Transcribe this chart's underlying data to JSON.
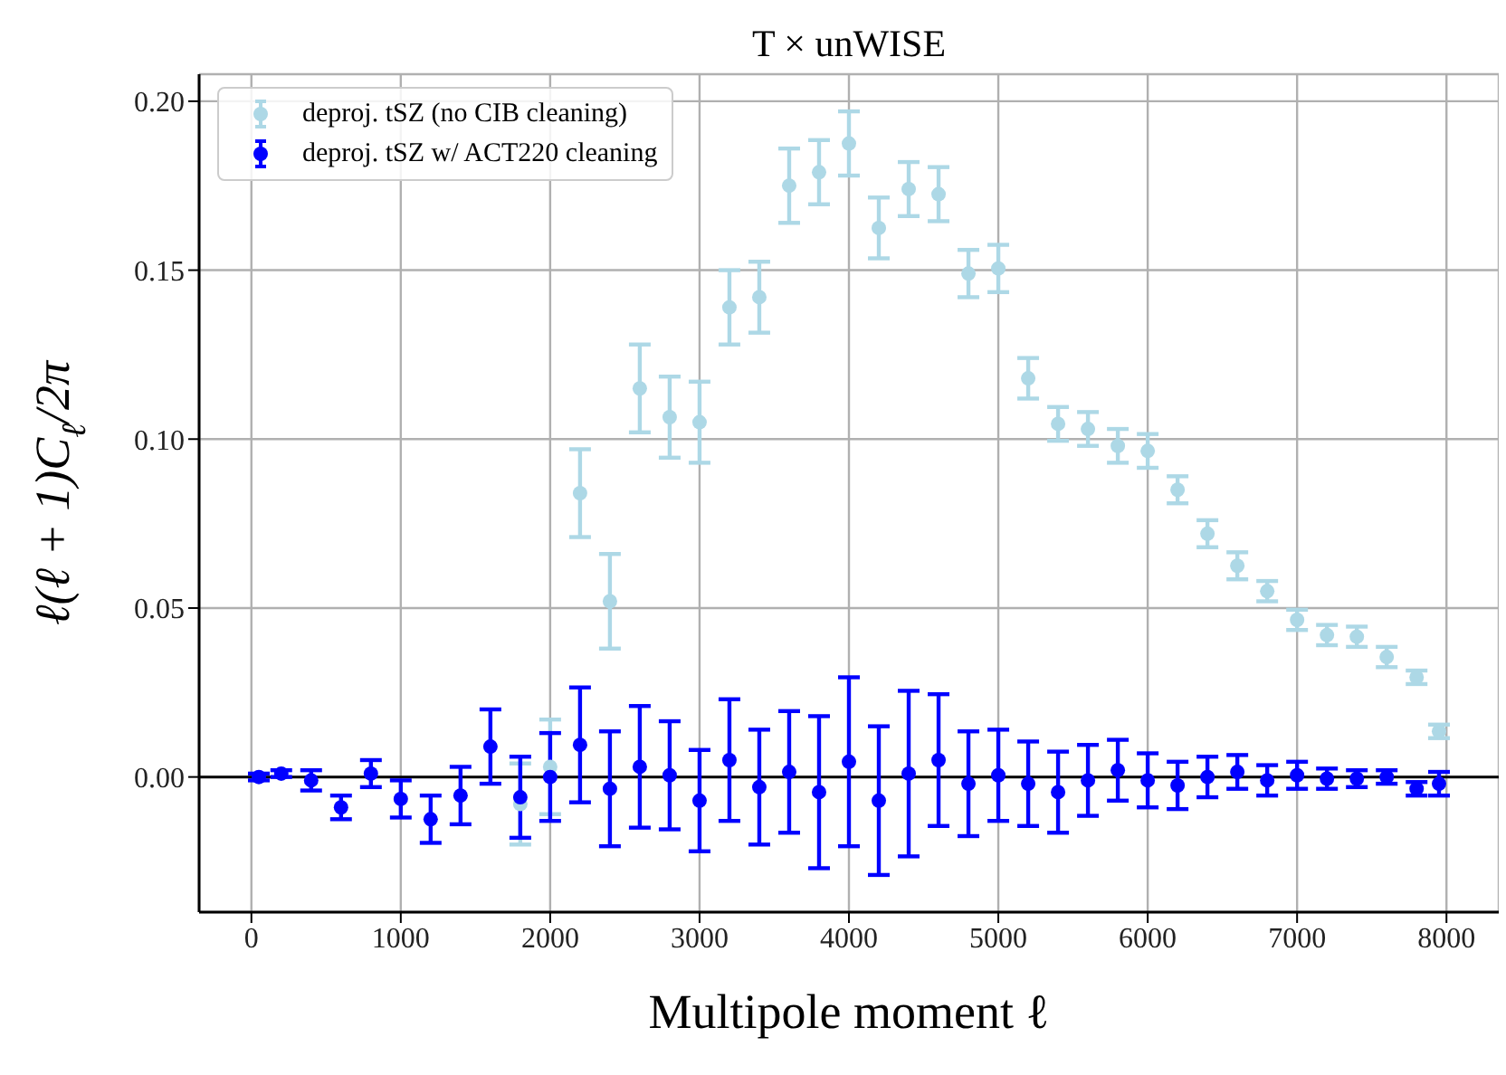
{
  "chart_data": {
    "type": "scatter",
    "title": "T × unWISE",
    "xlabel": "Multipole moment ℓ",
    "ylabel": "ℓ(ℓ + 1)C$_{ℓ}$/2π",
    "xlim": [
      -350,
      8350
    ],
    "xticks": [
      0,
      1000,
      2000,
      3000,
      4000,
      5000,
      6000,
      7000,
      8000
    ],
    "ylim": [
      -0.04,
      0.208
    ],
    "yticks": [
      {
        "value": 0,
        "label": "0.00"
      },
      {
        "value": 0.05,
        "label": "0.05"
      },
      {
        "value": 0.1,
        "label": "0.10"
      },
      {
        "value": 0.15,
        "label": "0.15"
      },
      {
        "value": 0.2,
        "label": "0.20"
      }
    ],
    "grid": true,
    "legend": "top left",
    "marker": "circle",
    "ref_lines": [
      {
        "axis": "y",
        "value": 0,
        "color": "#000000"
      }
    ],
    "series": [
      {
        "name": "deproj. tSZ (no CIB cleaning)",
        "color": "#add8e6",
        "x": [
          1800,
          2000,
          2200,
          2400,
          2600,
          2800,
          3000,
          3200,
          3400,
          3600,
          3800,
          4000,
          4200,
          4400,
          4600,
          4800,
          5000,
          5200,
          5400,
          5600,
          5800,
          6000,
          6200,
          6400,
          6600,
          6800,
          7000,
          7200,
          7400,
          7600,
          7800,
          7950
        ],
        "values": [
          -0.008,
          0.003,
          0.084,
          0.052,
          0.115,
          0.1065,
          0.105,
          0.139,
          0.142,
          0.175,
          0.179,
          0.1875,
          0.1625,
          0.174,
          0.1725,
          0.149,
          0.1505,
          0.118,
          0.1045,
          0.103,
          0.098,
          0.0965,
          0.085,
          0.072,
          0.0625,
          0.055,
          0.0465,
          0.042,
          0.0415,
          0.0355,
          0.0295,
          0.0135
        ],
        "errors": [
          0.012,
          0.014,
          0.013,
          0.014,
          0.013,
          0.012,
          0.012,
          0.011,
          0.0105,
          0.011,
          0.0095,
          0.0095,
          0.009,
          0.008,
          0.008,
          0.007,
          0.007,
          0.006,
          0.005,
          0.005,
          0.005,
          0.005,
          0.004,
          0.004,
          0.004,
          0.003,
          0.003,
          0.003,
          0.003,
          0.003,
          0.002,
          0.002
        ]
      },
      {
        "name": "deproj. tSZ w/ ACT220 cleaning",
        "color": "#0000ff",
        "x": [
          50,
          200,
          400,
          600,
          800,
          1000,
          1200,
          1400,
          1600,
          1800,
          2000,
          2200,
          2400,
          2600,
          2800,
          3000,
          3200,
          3400,
          3600,
          3800,
          4000,
          4200,
          4400,
          4600,
          4800,
          5000,
          5200,
          5400,
          5600,
          5800,
          6000,
          6200,
          6400,
          6600,
          6800,
          7000,
          7200,
          7400,
          7600,
          7800,
          7950
        ],
        "values": [
          0.0,
          0.001,
          -0.001,
          -0.009,
          0.001,
          -0.0065,
          -0.0125,
          -0.0055,
          0.009,
          -0.006,
          0.0,
          0.0095,
          -0.0035,
          0.003,
          0.0005,
          -0.007,
          0.005,
          -0.003,
          0.0015,
          -0.0045,
          0.0045,
          -0.007,
          0.001,
          0.005,
          -0.002,
          0.0005,
          -0.002,
          -0.0045,
          -0.001,
          0.002,
          -0.001,
          -0.0025,
          0.0,
          0.0015,
          -0.001,
          0.0005,
          -0.0005,
          -0.0005,
          0.0,
          -0.0035,
          -0.002
        ],
        "errors": [
          0.001,
          0.001,
          0.003,
          0.0035,
          0.004,
          0.0055,
          0.007,
          0.0085,
          0.011,
          0.012,
          0.013,
          0.017,
          0.017,
          0.018,
          0.016,
          0.015,
          0.018,
          0.017,
          0.018,
          0.0225,
          0.025,
          0.022,
          0.0245,
          0.0195,
          0.0155,
          0.0135,
          0.0125,
          0.012,
          0.0105,
          0.009,
          0.008,
          0.007,
          0.006,
          0.005,
          0.0045,
          0.004,
          0.003,
          0.0025,
          0.002,
          0.002,
          0.0035
        ]
      }
    ]
  }
}
